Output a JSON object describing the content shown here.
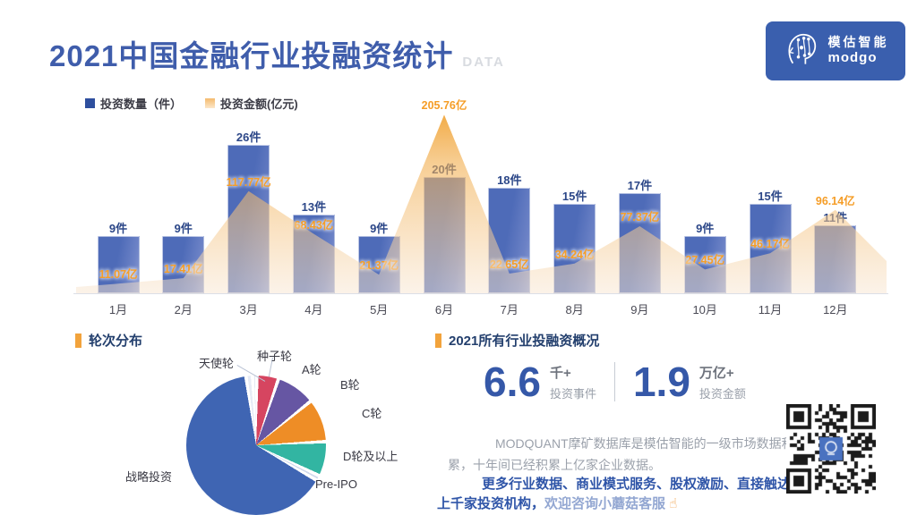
{
  "header": {
    "title": "2021中国金融行业投融资统计",
    "suffix": "DATA"
  },
  "logo": {
    "brand_cn": "模估智能",
    "brand_en": "modgo"
  },
  "legend": {
    "count": "投资数量（件）",
    "amount": "投资金额(亿元)"
  },
  "chart_data": [
    {
      "type": "bar",
      "subtype": "bar-area-combo",
      "title": "2021中国金融行业投融资统计",
      "categories": [
        "1月",
        "2月",
        "3月",
        "4月",
        "5月",
        "6月",
        "7月",
        "8月",
        "9月",
        "10月",
        "11月",
        "12月"
      ],
      "series": [
        {
          "name": "投资数量（件）",
          "type": "bar",
          "unit": "件",
          "color": "#4e6bb8",
          "values": [
            9,
            9,
            26,
            13,
            9,
            20,
            18,
            15,
            17,
            9,
            15,
            11
          ]
        },
        {
          "name": "投资金额(亿元)",
          "type": "area",
          "unit": "亿",
          "color": "#f09d2e",
          "values": [
            11.07,
            17.41,
            117.77,
            68.43,
            21.37,
            205.76,
            22.65,
            34.24,
            77.37,
            27.45,
            46.17,
            96.14
          ]
        }
      ],
      "legend_position": "top-left",
      "ylim_count": [
        0,
        30
      ],
      "ylim_amount": [
        0,
        220
      ],
      "grid": false
    },
    {
      "type": "pie",
      "title": "轮次分布",
      "segments": [
        {
          "label": "种子轮",
          "percent": 1.0,
          "color": "#e4e9f3"
        },
        {
          "label": "A轮",
          "percent": 5.0,
          "color": "#d64560"
        },
        {
          "label": "B轮",
          "percent": 9.0,
          "color": "#6656a3"
        },
        {
          "label": "C轮",
          "percent": 10.0,
          "color": "#ee8d26"
        },
        {
          "label": "D轮及以上",
          "percent": 8.0,
          "color": "#32b5a2"
        },
        {
          "label": "Pre-IPO",
          "percent": 1.2,
          "color": "#cfd9ec"
        },
        {
          "label": "战略投资",
          "percent": 64.3,
          "color": "#3f65b3"
        },
        {
          "label": "天使轮",
          "percent": 1.5,
          "color": "#e6ebf5"
        }
      ],
      "legend_position": "callout-labels"
    }
  ],
  "summary": {
    "title": "2021所有行业投融资概况",
    "stats": [
      {
        "value": "6.6",
        "unit": "千+",
        "label": "投资事件"
      },
      {
        "value": "1.9",
        "unit": "万亿+",
        "label": "投资金额"
      }
    ],
    "description_line1": "MODQUANT摩矿数据库是模估智能的一级市场数据积",
    "description_line2": "累，十年间已经积累上亿家企业数据。",
    "cta_line1": "更多行业数据、商业模式服务、股权激励、直接触达",
    "cta_line2_bold": "上千家投资机构，",
    "cta_line2_light": "欢迎咨询小蘑菇客服",
    "finger_icon": "☝"
  },
  "colors": {
    "title": "#3f5dab",
    "bar": "#4e6bb8",
    "area": "#f09d2e",
    "amount_label": "#f59d27",
    "count_label": "#2c4788",
    "accent_bullet": "#f2a33c",
    "big_number": "#3558a8",
    "logo_bg": "#3a5fae"
  }
}
